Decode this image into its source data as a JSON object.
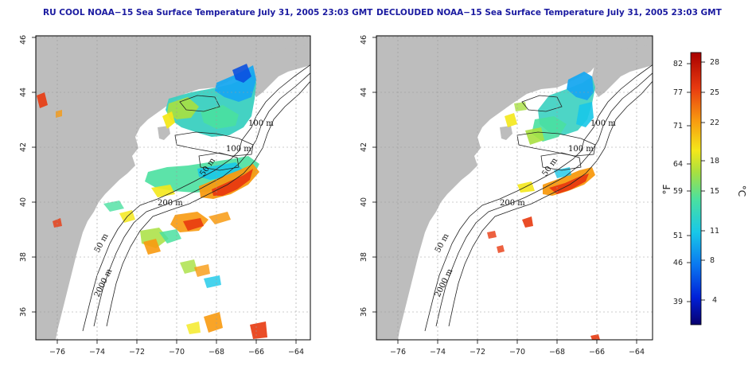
{
  "panels": [
    {
      "title": "RU COOL NOAA−15 Sea Surface Temperature July 31, 2005 23:03 GMT",
      "contour_labels": [
        "100 m",
        "100 m",
        "50 m",
        "200 m",
        "50 m",
        "2000 m"
      ]
    },
    {
      "title": "DECLOUDED NOAA−15 Sea Surface Temperature July 31, 2005 23:03 GMT",
      "contour_labels": [
        "100 m",
        "100 m",
        "50 m",
        "200 m",
        "50 m",
        "2000 m"
      ]
    }
  ],
  "axes": {
    "x_ticks": [
      "−76",
      "−74",
      "−72",
      "−70",
      "−68",
      "−66",
      "−64"
    ],
    "y_ticks": [
      "36",
      "38",
      "40",
      "42",
      "44",
      "46"
    ]
  },
  "colorbar": {
    "fahrenheit_ticks": [
      "82",
      "77",
      "71",
      "64",
      "59",
      "51",
      "46",
      "39"
    ],
    "celsius_ticks": [
      "28",
      "25",
      "22",
      "18",
      "15",
      "11",
      "8",
      "4"
    ],
    "fahrenheit_unit": "°F",
    "celsius_unit": "°C",
    "colors": [
      "#08006e",
      "#0020d8",
      "#0a78f0",
      "#18c8e8",
      "#4ae0a0",
      "#a8e040",
      "#f4e81a",
      "#f89a10",
      "#e83a10",
      "#a80000"
    ]
  },
  "colors": {
    "land": "#bdbdbd",
    "grid": "#9a9a9a",
    "contour": "#222222",
    "title": "#1a1aa0"
  }
}
